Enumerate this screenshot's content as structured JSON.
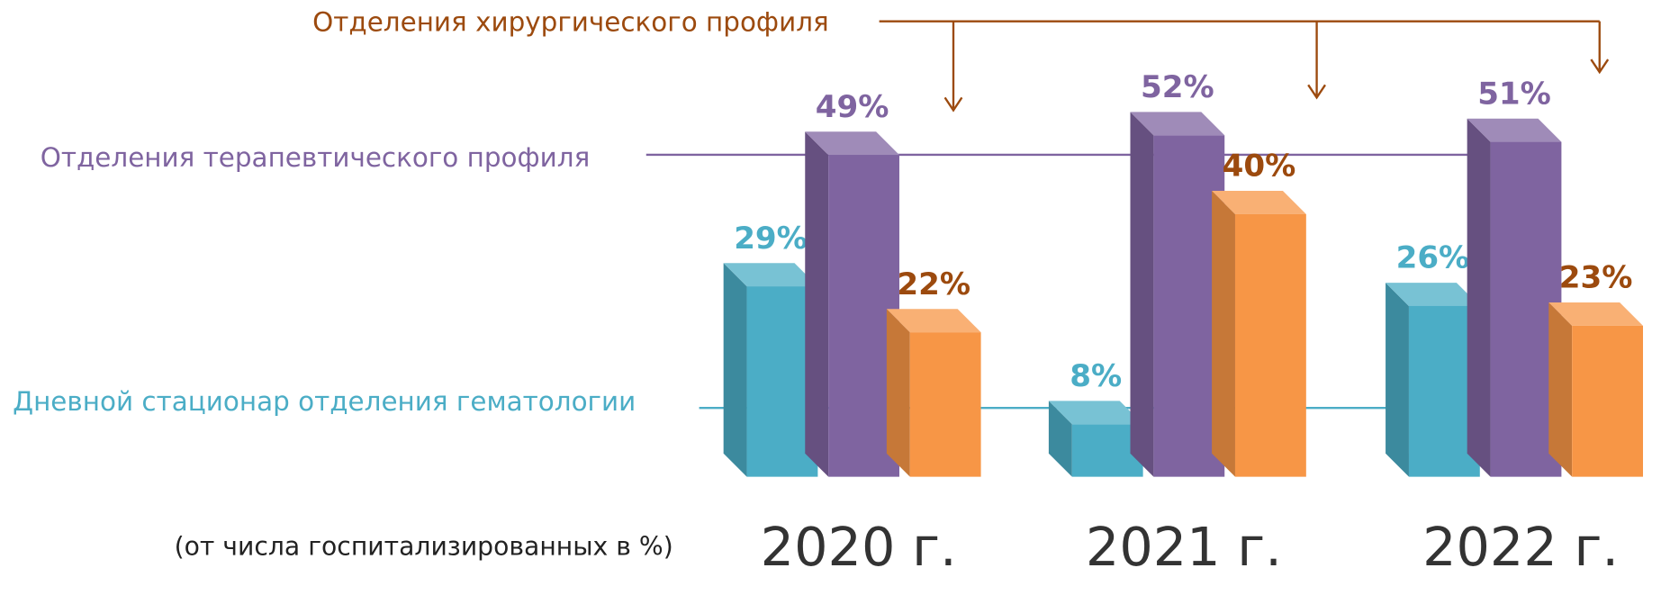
{
  "chart_data": {
    "type": "bar3d",
    "subtitle": "(от числа госпитализированных в %)",
    "categories": [
      "2020 г.",
      "2021 г.",
      "2022 г."
    ],
    "series": [
      {
        "name": "Дневной стационар отделения гематологии",
        "color": "#4BADC6",
        "values": [
          29,
          8,
          26
        ],
        "value_labels": [
          "29%",
          "8%",
          "26%"
        ]
      },
      {
        "name": "Отделения терапевтического профиля",
        "color": "#7F64A0",
        "values": [
          49,
          52,
          51
        ],
        "value_labels": [
          "49%",
          "52%",
          "51%"
        ]
      },
      {
        "name": "Отделения хирургического профиля",
        "color": "#F79646",
        "values": [
          22,
          40,
          23
        ],
        "value_labels": [
          "22%",
          "40%",
          "23%"
        ]
      }
    ]
  }
}
